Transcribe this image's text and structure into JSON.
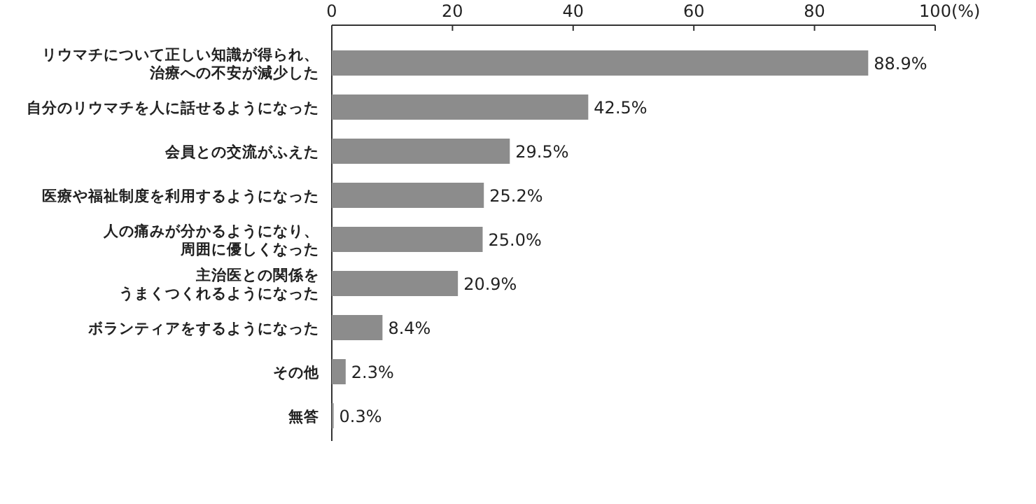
{
  "chart_data": {
    "type": "bar",
    "orientation": "horizontal",
    "categories": [
      "リウマチについて正しい知識が得られ、治療への不安が減少した",
      "自分のリウマチを人に話せるようになった",
      "会員との交流がふえた",
      "医療や福祉制度を利用するようになった",
      "人の痛みが分かるようになり、周囲に優しくなった",
      "主治医との関係をうまくつくれるようになった",
      "ボランティアをするようになった",
      "その他",
      "無答"
    ],
    "values": [
      88.9,
      42.5,
      29.5,
      25.2,
      25.0,
      20.9,
      8.4,
      2.3,
      0.3
    ],
    "value_labels": [
      "88.9%",
      "42.5%",
      "29.5%",
      "25.2%",
      "25.0%",
      "20.9%",
      "8.4%",
      "2.3%",
      "0.3%"
    ],
    "color": "#8c8c8c",
    "xlim": [
      0,
      100
    ],
    "xticks": [
      0,
      20,
      40,
      60,
      80,
      {
        "value": 100,
        "label": "100(%)"
      }
    ],
    "grid": false
  }
}
